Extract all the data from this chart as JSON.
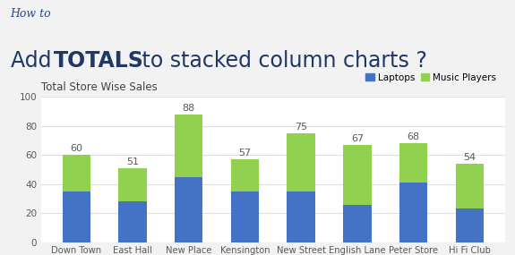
{
  "categories": [
    "Down Town",
    "East Hall",
    "New Place",
    "Kensington",
    "New Street",
    "English Lane",
    "Peter Store",
    "Hi Fi Club"
  ],
  "laptops": [
    35,
    28,
    45,
    35,
    35,
    26,
    41,
    23
  ],
  "totals": [
    60,
    51,
    88,
    57,
    75,
    67,
    68,
    54
  ],
  "laptop_color": "#4472C4",
  "music_color": "#92D050",
  "ylim": [
    0,
    100
  ],
  "yticks": [
    0,
    20,
    40,
    60,
    80,
    100
  ],
  "chart_title": "Total Store Wise Sales",
  "subtitle": "How to",
  "bg_color": "#F2F2F2",
  "chart_bg": "#FFFFFF",
  "title_color": "#1F3864",
  "subtitle_color": "#2B4A8B",
  "label_color": "#595959",
  "grid_color": "#E0E0E0"
}
